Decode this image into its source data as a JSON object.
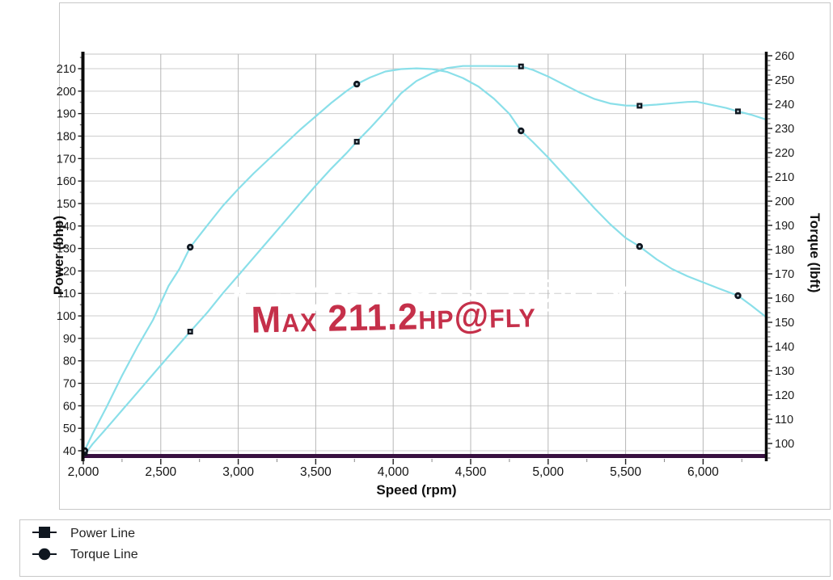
{
  "chart_data": {
    "type": "line",
    "xlabel": "Speed (rpm)",
    "ylabel_left": "Power (bhp)",
    "ylabel_right": "Torque (lbft)",
    "x_axis": {
      "min": 2000,
      "max": 6400,
      "tick_values": [
        2000,
        2500,
        3000,
        3500,
        4000,
        4500,
        5000,
        5500,
        6000
      ],
      "tick_labels": [
        "2,000",
        "2,500",
        "3,000",
        "3,500",
        "4,000",
        "4,500",
        "5,000",
        "5,500",
        "6,000"
      ]
    },
    "power_axis": {
      "min": 36.8,
      "max": 216.5,
      "tick_values": [
        40,
        50,
        60,
        70,
        80,
        90,
        100,
        110,
        120,
        130,
        140,
        150,
        160,
        170,
        180,
        190,
        200,
        210
      ]
    },
    "torque_axis": {
      "min": 94,
      "max": 260.7,
      "tick_values": [
        100,
        110,
        120,
        130,
        140,
        150,
        160,
        170,
        180,
        190,
        200,
        210,
        220,
        230,
        240,
        250,
        260
      ]
    },
    "series": [
      {
        "name": "Power Line",
        "axis": "power",
        "marker": "square",
        "color": "#8adfe9",
        "points": [
          [
            2000,
            37.5
          ],
          [
            2060,
            43
          ],
          [
            2150,
            50
          ],
          [
            2250,
            58
          ],
          [
            2350,
            66
          ],
          [
            2450,
            74
          ],
          [
            2550,
            82
          ],
          [
            2690,
            93
          ],
          [
            2800,
            101.5
          ],
          [
            2900,
            110
          ],
          [
            3000,
            118
          ],
          [
            3100,
            126
          ],
          [
            3200,
            134
          ],
          [
            3300,
            142
          ],
          [
            3400,
            150
          ],
          [
            3500,
            158
          ],
          [
            3600,
            165.5
          ],
          [
            3700,
            172.5
          ],
          [
            3765,
            177.5
          ],
          [
            3850,
            183.5
          ],
          [
            3950,
            191
          ],
          [
            4050,
            199
          ],
          [
            4150,
            204.5
          ],
          [
            4250,
            208
          ],
          [
            4350,
            210.3
          ],
          [
            4450,
            211.2
          ],
          [
            4600,
            211.2
          ],
          [
            4750,
            211.1
          ],
          [
            4825,
            211
          ],
          [
            4900,
            209.5
          ],
          [
            5000,
            206.5
          ],
          [
            5100,
            203
          ],
          [
            5200,
            199.5
          ],
          [
            5300,
            196.5
          ],
          [
            5400,
            194.5
          ],
          [
            5500,
            193.6
          ],
          [
            5590,
            193.5
          ],
          [
            5700,
            194
          ],
          [
            5800,
            194.6
          ],
          [
            5900,
            195.2
          ],
          [
            5960,
            195.3
          ],
          [
            6060,
            193.8
          ],
          [
            6150,
            192.5
          ],
          [
            6225,
            191
          ],
          [
            6310,
            189.5
          ],
          [
            6400,
            187.5
          ]
        ],
        "markers": [
          [
            2010,
            39
          ],
          [
            2690,
            93
          ],
          [
            3765,
            177.5
          ],
          [
            4825,
            211
          ],
          [
            5590,
            193.5
          ],
          [
            6225,
            191
          ]
        ]
      },
      {
        "name": "Torque Line",
        "axis": "torque",
        "marker": "circle",
        "color": "#8adfe9",
        "points": [
          [
            2000,
            96
          ],
          [
            2060,
            104
          ],
          [
            2150,
            115
          ],
          [
            2250,
            128
          ],
          [
            2350,
            140
          ],
          [
            2450,
            151
          ],
          [
            2550,
            165
          ],
          [
            2620,
            172
          ],
          [
            2690,
            181
          ],
          [
            2800,
            190
          ],
          [
            2900,
            198
          ],
          [
            3000,
            205
          ],
          [
            3100,
            211.5
          ],
          [
            3200,
            217.5
          ],
          [
            3300,
            223.5
          ],
          [
            3400,
            229.5
          ],
          [
            3500,
            235
          ],
          [
            3600,
            240.5
          ],
          [
            3700,
            245.5
          ],
          [
            3765,
            248.3
          ],
          [
            3850,
            251
          ],
          [
            3950,
            253.5
          ],
          [
            4050,
            254.5
          ],
          [
            4150,
            254.8
          ],
          [
            4250,
            254.5
          ],
          [
            4350,
            253.3
          ],
          [
            4450,
            250.8
          ],
          [
            4550,
            247.3
          ],
          [
            4650,
            242.3
          ],
          [
            4750,
            236
          ],
          [
            4825,
            229
          ],
          [
            4900,
            224.5
          ],
          [
            5000,
            218
          ],
          [
            5100,
            211
          ],
          [
            5200,
            204
          ],
          [
            5300,
            197
          ],
          [
            5400,
            190.5
          ],
          [
            5500,
            184.8
          ],
          [
            5590,
            181.3
          ],
          [
            5700,
            176
          ],
          [
            5800,
            172
          ],
          [
            5900,
            169
          ],
          [
            6000,
            166.5
          ],
          [
            6100,
            164
          ],
          [
            6225,
            161
          ],
          [
            6310,
            157
          ],
          [
            6400,
            152.5
          ]
        ],
        "markers": [
          [
            2010,
            97
          ],
          [
            2690,
            181
          ],
          [
            3765,
            248.3
          ],
          [
            4825,
            229
          ],
          [
            5590,
            181.3
          ],
          [
            6225,
            161
          ]
        ]
      }
    ],
    "annotations": {
      "watermark_red": {
        "text": "Max 211.2hp@fly",
        "color": "#c5304a"
      },
      "watermark_white": {
        "text": "Max 254.8lbft@fly",
        "color": "#ffffff"
      }
    },
    "baseline_color": "#381040",
    "marker_color": "#0f1720",
    "legend": {
      "items": [
        {
          "label": "Power Line",
          "marker": "square"
        },
        {
          "label": "Torque Line",
          "marker": "circle"
        }
      ]
    }
  }
}
